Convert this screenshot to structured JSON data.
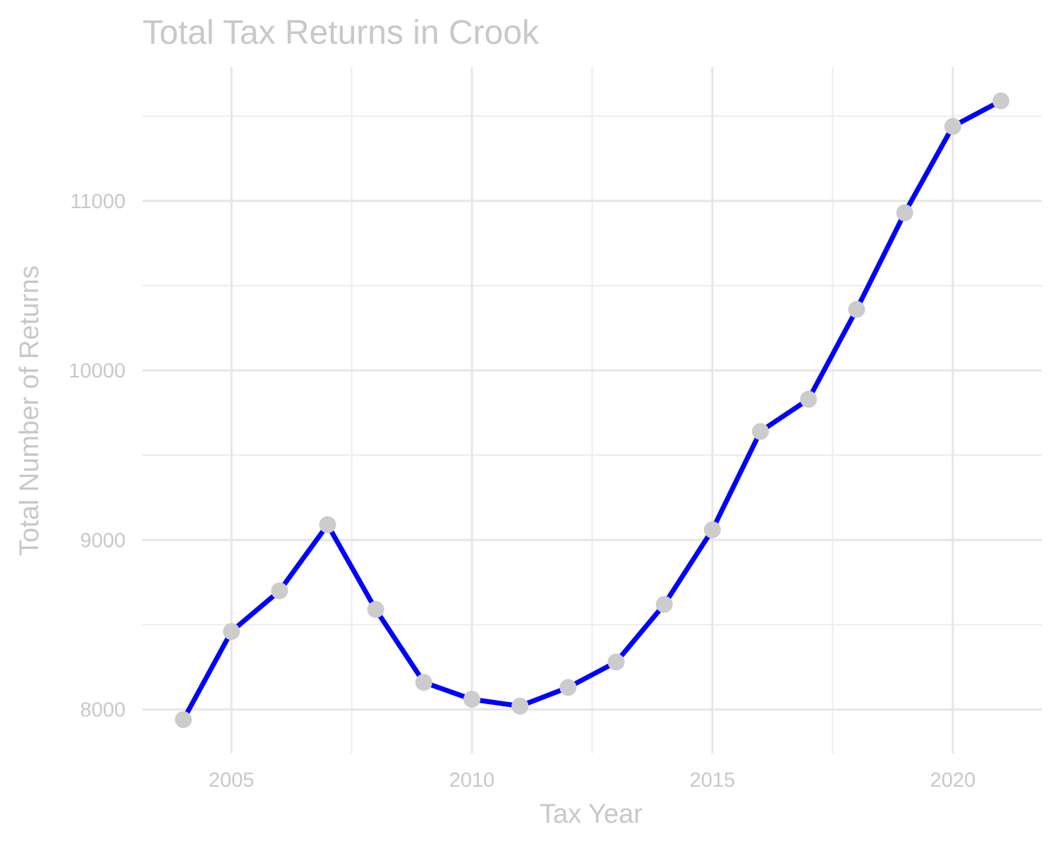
{
  "chart_data": {
    "type": "line",
    "title": "Total Tax Returns in Crook",
    "xlabel": "Tax Year",
    "ylabel": "Total Number of Returns",
    "x": [
      2004,
      2005,
      2006,
      2007,
      2008,
      2009,
      2010,
      2011,
      2012,
      2013,
      2014,
      2015,
      2016,
      2017,
      2018,
      2019,
      2020,
      2021
    ],
    "series": [
      {
        "values": [
          7940,
          8460,
          8700,
          9090,
          8590,
          8160,
          8060,
          8020,
          8130,
          8280,
          8620,
          9060,
          9640,
          9830,
          10360,
          10930,
          11440,
          11590
        ]
      }
    ],
    "xlim": [
      2003.15,
      2021.85
    ],
    "ylim": [
      7740,
      11790
    ],
    "x_ticks": [
      2005,
      2010,
      2015,
      2020
    ],
    "y_ticks": [
      8000,
      9000,
      10000,
      11000
    ],
    "x_tick_labels": [
      "2005",
      "2010",
      "2015",
      "2020"
    ],
    "y_tick_labels": [
      "8000",
      "9000",
      "10000",
      "11000"
    ],
    "grid": true,
    "legend": "none",
    "colors": {
      "line": "#0000ff",
      "points": "#cccccc",
      "grid": "#e6e6e6",
      "text": "#c8c8c8"
    }
  }
}
